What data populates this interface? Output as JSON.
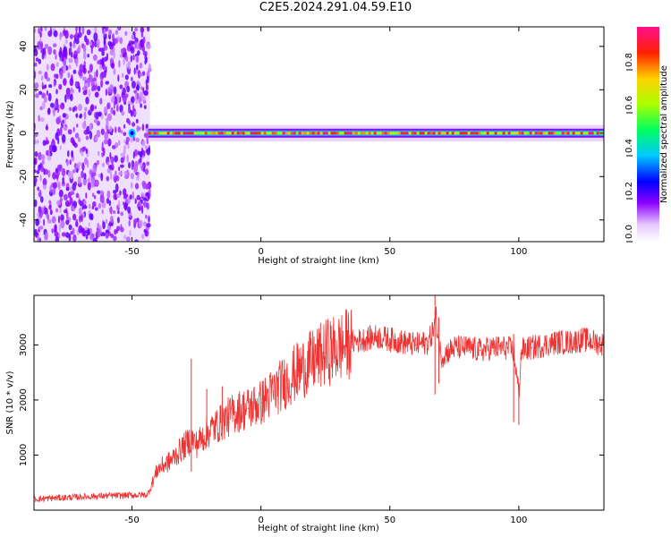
{
  "title": "C2E5.2024.291.04.59.E10",
  "chart_data": [
    {
      "type": "heatmap",
      "xlabel": "Height of straight line (km)",
      "ylabel": "Frequency (Hz)",
      "xlim": [
        -88,
        133
      ],
      "ylim": [
        -50,
        49
      ],
      "xticks": [
        -50,
        0,
        50,
        100
      ],
      "yticks": [
        -40,
        -20,
        0,
        20,
        40
      ],
      "noise_region_x": [
        -88,
        -43
      ],
      "signal_band_center_hz": 0,
      "colorbar": {
        "label": "Normalized spectral amplitude",
        "range": [
          0.0,
          1.0
        ],
        "ticks": [
          0.0,
          0.2,
          0.4,
          0.6,
          0.8
        ]
      },
      "grid": false
    },
    {
      "type": "line",
      "xlabel": "Height of straight line (km)",
      "ylabel": "SNR (10 * v/v)",
      "xlim": [
        -88,
        133
      ],
      "ylim": [
        0,
        3900
      ],
      "xticks": [
        -50,
        0,
        50,
        100
      ],
      "yticks": [
        1000,
        2000,
        3000
      ],
      "color": "#ee3333",
      "grid": false,
      "series": [
        {
          "x": [
            -88,
            -80,
            -70,
            -60,
            -50,
            -44,
            -40,
            -35,
            -30,
            -27,
            -25,
            -22,
            -20,
            -15,
            -10,
            -5,
            0,
            5,
            10,
            15,
            20,
            25,
            30,
            35,
            40,
            45,
            50,
            55,
            60,
            65,
            67,
            68,
            69,
            70,
            75,
            80,
            85,
            90,
            95,
            98,
            100,
            101,
            105,
            110,
            115,
            120,
            125,
            130,
            133
          ],
          "y": [
            200,
            220,
            240,
            260,
            270,
            280,
            750,
            900,
            1150,
            1300,
            1200,
            1350,
            1450,
            1600,
            1780,
            1850,
            1950,
            2150,
            2350,
            2550,
            2700,
            2850,
            2950,
            3050,
            3100,
            3150,
            3100,
            3050,
            3000,
            3050,
            3300,
            3500,
            3000,
            2800,
            2950,
            2950,
            2900,
            2950,
            2950,
            2900,
            2100,
            2900,
            2950,
            3000,
            3050,
            3050,
            3100,
            3050,
            3000
          ]
        }
      ]
    }
  ]
}
